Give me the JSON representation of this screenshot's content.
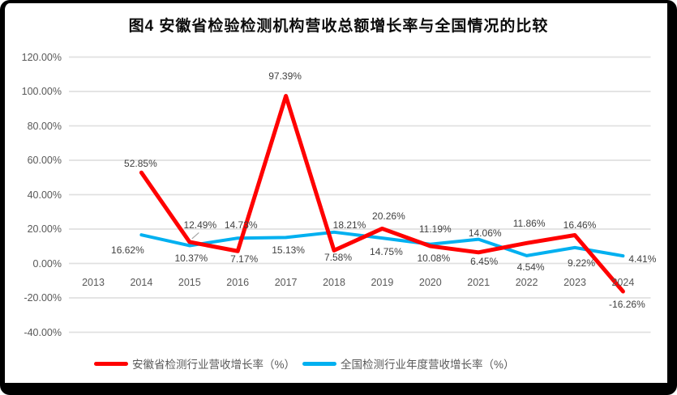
{
  "title": "图4 安徽省检验检测机构营收总额增长率与全国情况的比较",
  "chart_data": {
    "type": "line",
    "title": "图4 安徽省检验检测机构营收总额增长率与全国情况的比较",
    "categories": [
      "2013",
      "2014",
      "2015",
      "2016",
      "2017",
      "2018",
      "2019",
      "2020",
      "2021",
      "2022",
      "2023",
      "2024"
    ],
    "series": [
      {
        "key": "anhui",
        "name": "安徽省检测行业营收增长率（%）",
        "color": "#ff0000",
        "stroke_width": 5,
        "values": [
          null,
          52.85,
          12.49,
          7.17,
          97.39,
          7.58,
          20.26,
          10.08,
          6.45,
          11.86,
          16.46,
          -16.26
        ],
        "labels": [
          "",
          "52.85%",
          "12.49%",
          "7.17%",
          "97.39%",
          "7.58%",
          "20.26%",
          "10.08%",
          "6.45%",
          "11.86%",
          "16.46%",
          "-16.26%"
        ],
        "label_offsets": [
          null,
          [
            -1,
            -11
          ],
          [
            13,
            -21
          ],
          [
            8,
            10
          ],
          [
            -1,
            -25
          ],
          [
            5,
            9
          ],
          [
            8,
            -15
          ],
          [
            4,
            15
          ],
          [
            7,
            11
          ],
          [
            3,
            -24
          ],
          [
            6,
            -13
          ],
          [
            5,
            16
          ]
        ]
      },
      {
        "key": "national",
        "name": "全国检测行业年度营收增长率（%）",
        "color": "#00b0f0",
        "stroke_width": 4,
        "values": [
          null,
          16.62,
          10.37,
          14.73,
          15.13,
          18.21,
          14.75,
          11.19,
          14.06,
          4.54,
          9.22,
          4.41
        ],
        "labels": [
          "",
          "16.62%",
          "10.37%",
          "14.73%",
          "15.13%",
          "18.21%",
          "14.75%",
          "11.19%",
          "14.06%",
          "4.54%",
          "9.22%",
          "4.41%"
        ],
        "label_offsets": [
          null,
          [
            -17,
            19
          ],
          [
            2,
            16
          ],
          [
            4,
            -16
          ],
          [
            3,
            16
          ],
          [
            19,
            -9
          ],
          [
            5,
            17
          ],
          [
            6,
            -19
          ],
          [
            8,
            -8
          ],
          [
            5,
            14
          ],
          [
            8,
            19
          ],
          [
            24,
            4
          ]
        ]
      }
    ],
    "y_axis": {
      "ticks": [
        "120.00%",
        "100.00%",
        "80.00%",
        "60.00%",
        "40.00%",
        "20.00%",
        "0.00%",
        "-20.00%",
        "-40.00%"
      ],
      "max": 120,
      "min": -40,
      "step": 20
    },
    "grid": true,
    "data_labels": true,
    "legend_position": "bottom",
    "leader_line": {
      "series": 0,
      "index": 2,
      "color": "#a6a6a6"
    },
    "colors": {
      "grid": "#e0e0e0",
      "axis_text": "#595959",
      "label_text": "#404040",
      "frame": "#000000"
    }
  }
}
